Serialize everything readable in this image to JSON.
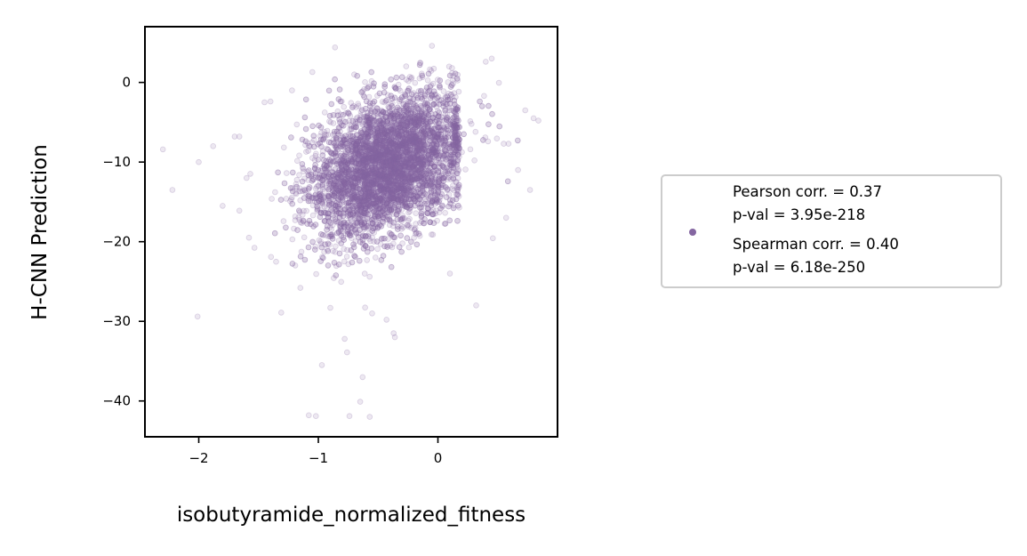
{
  "colors": {
    "points": "#8466a1",
    "axis": "#000000",
    "legend_border": "#cccccc"
  },
  "chart_data": {
    "type": "scatter",
    "title": "",
    "xlabel": "isobutyramide_normalized_fitness",
    "ylabel": "H-CNN Prediction",
    "xlim": [
      -2.45,
      1.0
    ],
    "ylim": [
      -44.5,
      7.0
    ],
    "xticks": [
      -2,
      -1,
      0
    ],
    "xtick_labels": [
      "−2",
      "−1",
      "0"
    ],
    "yticks": [
      0,
      -10,
      -20,
      -30,
      -40
    ],
    "ytick_labels": [
      "0",
      "−10",
      "−20",
      "−30",
      "−40"
    ],
    "grid": false,
    "legend_position": "right, outside plot",
    "series": [
      {
        "point_count_approx": 6000,
        "opacity": 0.15,
        "legend": {
          "lines": [
            "Pearson corr. = 0.37",
            "p-val = 3.95e-218",
            "Spearman corr. = 0.40",
            "p-val = 6.18e-250"
          ]
        },
        "core_distribution": {
          "x_mean": -0.42,
          "x_sd": 0.33,
          "y_mean": -10.5,
          "y_sd": 4.5,
          "pearson": 0.37
        },
        "outliers": [
          [
            -2.3,
            -8.4
          ],
          [
            -2.22,
            -13.5
          ],
          [
            -2.0,
            -10.0
          ],
          [
            -2.01,
            -29.4
          ],
          [
            -1.88,
            -8.0
          ],
          [
            -1.8,
            -15.5
          ],
          [
            -1.7,
            -6.8
          ],
          [
            -1.66,
            -6.8
          ],
          [
            -1.6,
            -12.0
          ],
          [
            -1.58,
            -19.5
          ],
          [
            -1.45,
            -2.5
          ],
          [
            -1.4,
            -2.4
          ],
          [
            -1.31,
            -28.9
          ],
          [
            -1.15,
            -25.8
          ],
          [
            -1.08,
            -41.8
          ],
          [
            -1.02,
            -41.9
          ],
          [
            -0.97,
            -35.5
          ],
          [
            -0.86,
            4.4
          ],
          [
            -0.78,
            -32.2
          ],
          [
            -0.76,
            -33.9
          ],
          [
            -0.74,
            -41.9
          ],
          [
            -0.63,
            -37.0
          ],
          [
            -0.65,
            -40.1
          ],
          [
            -0.57,
            -42.0
          ],
          [
            -0.43,
            -29.8
          ],
          [
            -0.37,
            -31.5
          ],
          [
            -0.36,
            -32.0
          ],
          [
            -0.2,
            -19.5
          ],
          [
            0.55,
            -7.7
          ],
          [
            0.73,
            -3.5
          ],
          [
            0.8,
            -4.5
          ],
          [
            0.84,
            -4.8
          ],
          [
            0.77,
            -13.5
          ],
          [
            0.57,
            -17.0
          ],
          [
            0.45,
            3.0
          ],
          [
            0.4,
            2.6
          ],
          [
            -0.05,
            4.6
          ],
          [
            -0.7,
            1.0
          ],
          [
            -1.05,
            1.3
          ],
          [
            -1.22,
            -1.0
          ],
          [
            0.67,
            -11.0
          ],
          [
            0.32,
            -28.0
          ],
          [
            -0.55,
            -29.0
          ],
          [
            -0.9,
            -28.3
          ],
          [
            0.1,
            -24.0
          ]
        ]
      }
    ]
  }
}
